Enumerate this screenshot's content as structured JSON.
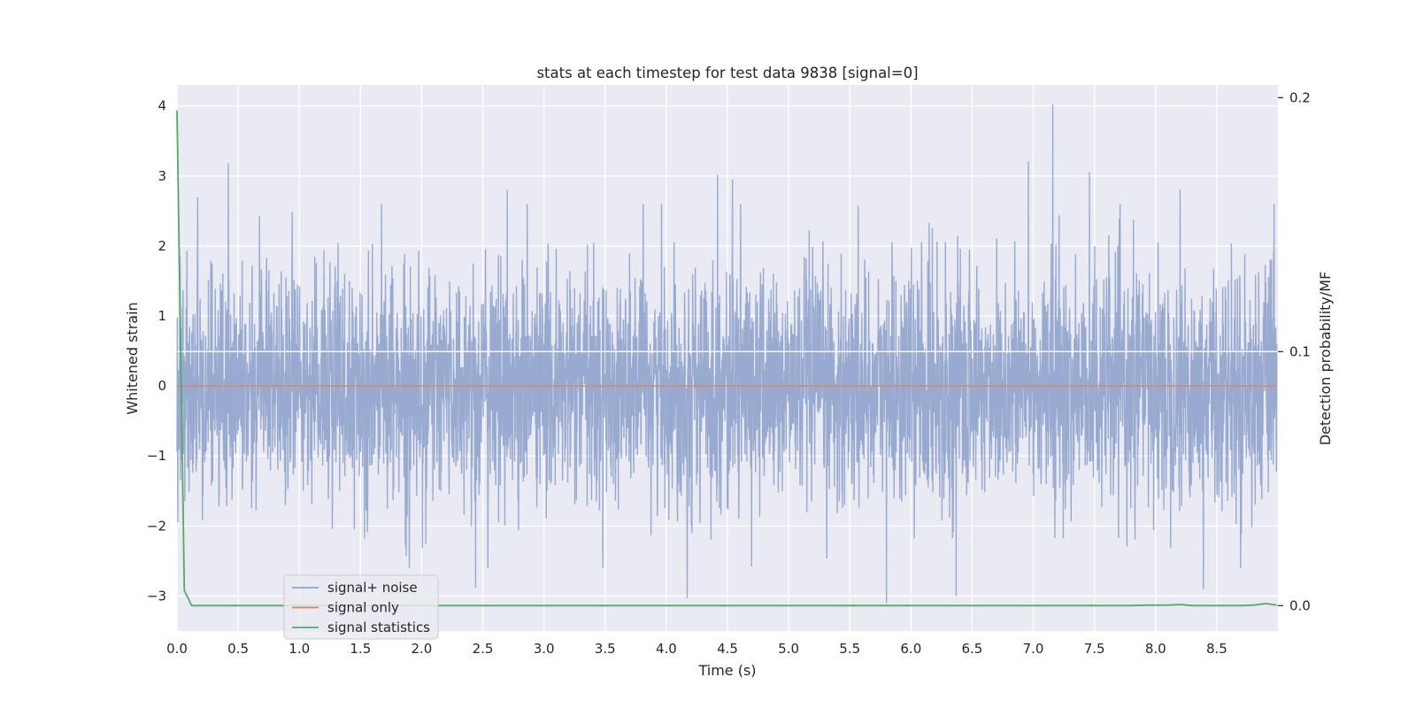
{
  "chart_data": {
    "type": "line",
    "title": "stats at each timestep for test data 9838 [signal=0]",
    "xlabel": "Time (s)",
    "ylabel": "Whitened strain",
    "y2label": "Detection probability/MF",
    "xlim": [
      0.0,
      9.0
    ],
    "ylim": [
      -3.5,
      4.3
    ],
    "y2lim": [
      -0.01,
      0.205
    ],
    "xticks": [
      "0.0",
      "0.5",
      "1.0",
      "1.5",
      "2.0",
      "2.5",
      "3.0",
      "3.5",
      "4.0",
      "4.5",
      "5.0",
      "5.5",
      "6.0",
      "6.5",
      "7.0",
      "7.5",
      "8.0",
      "8.5"
    ],
    "yticks": [
      "4",
      "3",
      "2",
      "1",
      "0",
      "−1",
      "−2",
      "−3"
    ],
    "y2ticks": [
      "0.2",
      "0.1",
      "0.0"
    ],
    "grid": true,
    "legend_position": "lower-left",
    "series": [
      {
        "name": "signal+ noise",
        "axis": "left",
        "color": "#8fa3cc",
        "description": "whitened strain noise, roughly gaussian about 0",
        "x_range": [
          0.0,
          8.99
        ],
        "notable_peaks": [
          {
            "x": 0.42,
            "y": 3.18
          },
          {
            "x": 0.17,
            "y": 2.7
          },
          {
            "x": 2.7,
            "y": 2.8
          },
          {
            "x": 4.42,
            "y": 3.02
          },
          {
            "x": 4.54,
            "y": 2.95
          },
          {
            "x": 6.96,
            "y": 3.21
          },
          {
            "x": 7.16,
            "y": 4.02
          },
          {
            "x": 7.46,
            "y": 3.05
          },
          {
            "x": 8.2,
            "y": 2.8
          },
          {
            "x": 4.17,
            "y": -3.03
          },
          {
            "x": 5.8,
            "y": -3.1
          },
          {
            "x": 6.37,
            "y": -3.0
          },
          {
            "x": 8.39,
            "y": -2.9
          },
          {
            "x": 2.44,
            "y": -2.88
          }
        ]
      },
      {
        "name": "signal only",
        "axis": "left",
        "color": "#dd8452",
        "x": [
          0.0,
          8.99
        ],
        "values": [
          0.0,
          0.0
        ]
      },
      {
        "name": "signal statistics",
        "axis": "right",
        "color": "#55a868",
        "x": [
          0.0,
          0.06,
          0.12,
          0.5,
          1.0,
          2.0,
          3.0,
          4.0,
          5.0,
          6.0,
          7.0,
          7.5,
          7.8,
          7.95,
          8.1,
          8.2,
          8.3,
          8.5,
          8.7,
          8.8,
          8.9,
          8.99
        ],
        "values": [
          0.195,
          0.006,
          0.0,
          0.0,
          0.0,
          0.0,
          0.0,
          0.0,
          0.0,
          0.0,
          0.0,
          0.0,
          0.0,
          0.0002,
          0.0002,
          0.0004,
          0.0,
          0.0,
          0.0,
          0.0002,
          0.0008,
          0.0002
        ]
      }
    ]
  }
}
